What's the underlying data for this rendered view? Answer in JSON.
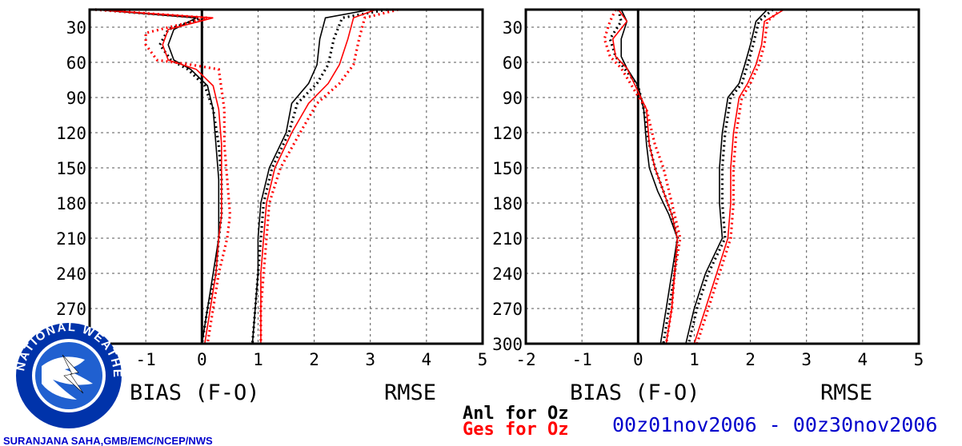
{
  "labels": {
    "bias": "BIAS (F-O)",
    "rmse": "RMSE",
    "legend_anl": "Anl for Oz",
    "legend_ges": "Ges for Oz",
    "date_range": "00z01nov2006 - 00z30nov2006",
    "credit": "SURANJANA SAHA,GMB/EMC/NCEP/NWS",
    "logo_text": "NATIONAL WEATHER SERVICE"
  },
  "colors": {
    "anl": "#000000",
    "ges": "#ff0000",
    "text_blue": "#0000cc"
  },
  "chart_data": [
    {
      "type": "line",
      "panel": "left",
      "xlim": [
        -2,
        5
      ],
      "ylim": [
        300,
        15
      ],
      "x_ticks": [
        "-1",
        "0",
        "1",
        "2",
        "3",
        "4",
        "5"
      ],
      "y_ticks": [
        "30",
        "60",
        "90",
        "120",
        "150",
        "180",
        "210",
        "240",
        "270"
      ],
      "series": [
        {
          "name": "Anl for Oz",
          "style": "solid",
          "color": "#000000",
          "points": [
            [
              -1.9,
              15
            ],
            [
              -0.1,
              22
            ],
            [
              -0.5,
              32
            ],
            [
              -0.6,
              45
            ],
            [
              -0.5,
              58
            ],
            [
              -0.2,
              66
            ],
            [
              0.1,
              80
            ],
            [
              0.2,
              100
            ],
            [
              0.25,
              130
            ],
            [
              0.3,
              160
            ],
            [
              0.3,
              190
            ],
            [
              0.3,
              210
            ],
            [
              0.2,
              240
            ],
            [
              0.1,
              270
            ],
            [
              0.0,
              300
            ],
            [
              3.0,
              15
            ],
            [
              2.2,
              22
            ],
            [
              2.1,
              40
            ],
            [
              2.05,
              62
            ],
            [
              1.9,
              78
            ],
            [
              1.6,
              95
            ],
            [
              1.5,
              120
            ],
            [
              1.2,
              150
            ],
            [
              1.05,
              180
            ],
            [
              1.0,
              210
            ],
            [
              1.0,
              240
            ],
            [
              0.95,
              270
            ],
            [
              0.9,
              300
            ]
          ]
        },
        {
          "name": "Anl for Oz",
          "style": "dotted",
          "color": "#000000",
          "points": [
            [
              -1.9,
              15
            ],
            [
              0.0,
              22
            ],
            [
              -0.6,
              32
            ],
            [
              -0.75,
              45
            ],
            [
              -0.55,
              58
            ],
            [
              -0.25,
              66
            ],
            [
              0.05,
              80
            ],
            [
              0.2,
              100
            ],
            [
              0.3,
              130
            ],
            [
              0.35,
              160
            ],
            [
              0.35,
              190
            ],
            [
              0.3,
              210
            ],
            [
              0.25,
              240
            ],
            [
              0.1,
              270
            ],
            [
              0.0,
              300
            ],
            [
              3.3,
              15
            ],
            [
              2.5,
              22
            ],
            [
              2.35,
              40
            ],
            [
              2.25,
              62
            ],
            [
              2.05,
              78
            ],
            [
              1.7,
              95
            ],
            [
              1.55,
              120
            ],
            [
              1.25,
              150
            ],
            [
              1.1,
              180
            ],
            [
              1.05,
              210
            ],
            [
              1.0,
              240
            ],
            [
              0.95,
              270
            ],
            [
              0.9,
              300
            ]
          ]
        },
        {
          "name": "Ges for Oz",
          "style": "solid",
          "color": "#ff0000",
          "points": [
            [
              -1.9,
              15
            ],
            [
              0.2,
              22
            ],
            [
              -0.6,
              32
            ],
            [
              -0.7,
              45
            ],
            [
              -0.6,
              58
            ],
            [
              -0.1,
              66
            ],
            [
              0.2,
              80
            ],
            [
              0.3,
              100
            ],
            [
              0.35,
              130
            ],
            [
              0.35,
              160
            ],
            [
              0.35,
              190
            ],
            [
              0.3,
              210
            ],
            [
              0.25,
              240
            ],
            [
              0.15,
              270
            ],
            [
              0.05,
              300
            ],
            [
              3.1,
              15
            ],
            [
              2.7,
              22
            ],
            [
              2.6,
              40
            ],
            [
              2.45,
              62
            ],
            [
              2.25,
              78
            ],
            [
              1.9,
              95
            ],
            [
              1.6,
              120
            ],
            [
              1.3,
              150
            ],
            [
              1.15,
              180
            ],
            [
              1.1,
              210
            ],
            [
              1.05,
              240
            ],
            [
              1.05,
              270
            ],
            [
              1.05,
              300
            ]
          ]
        },
        {
          "name": "Ges for Oz",
          "style": "dotted",
          "color": "#ff0000",
          "points": [
            [
              -1.9,
              15
            ],
            [
              0.1,
              22
            ],
            [
              -1.0,
              35
            ],
            [
              -1.0,
              45
            ],
            [
              -0.8,
              58
            ],
            [
              -0.2,
              62
            ],
            [
              0.3,
              66
            ],
            [
              0.4,
              100
            ],
            [
              0.4,
              130
            ],
            [
              0.45,
              160
            ],
            [
              0.5,
              190
            ],
            [
              0.45,
              210
            ],
            [
              0.3,
              240
            ],
            [
              0.2,
              270
            ],
            [
              0.1,
              300
            ],
            [
              3.5,
              15
            ],
            [
              2.9,
              22
            ],
            [
              2.8,
              40
            ],
            [
              2.7,
              62
            ],
            [
              2.45,
              78
            ],
            [
              2.05,
              95
            ],
            [
              1.75,
              120
            ],
            [
              1.4,
              150
            ],
            [
              1.2,
              180
            ],
            [
              1.15,
              210
            ],
            [
              1.1,
              240
            ],
            [
              1.05,
              270
            ],
            [
              1.05,
              300
            ]
          ]
        }
      ]
    },
    {
      "type": "line",
      "panel": "right",
      "xlim": [
        -2,
        5
      ],
      "ylim": [
        300,
        15
      ],
      "x_ticks": [
        "-2",
        "-1",
        "0",
        "1",
        "2",
        "3",
        "4",
        "5"
      ],
      "y_ticks": [
        "30",
        "60",
        "90",
        "120",
        "150",
        "180",
        "210",
        "240",
        "270",
        "300"
      ],
      "series": [
        {
          "name": "Anl for Oz",
          "style": "solid",
          "color": "#000000",
          "points": [
            [
              -0.3,
              15
            ],
            [
              -0.2,
              25
            ],
            [
              -0.3,
              40
            ],
            [
              -0.3,
              55
            ],
            [
              -0.2,
              65
            ],
            [
              0.0,
              80
            ],
            [
              0.1,
              100
            ],
            [
              0.15,
              130
            ],
            [
              0.2,
              150
            ],
            [
              0.35,
              170
            ],
            [
              0.55,
              190
            ],
            [
              0.7,
              210
            ],
            [
              0.6,
              240
            ],
            [
              0.5,
              270
            ],
            [
              0.4,
              300
            ],
            [
              2.3,
              15
            ],
            [
              2.1,
              25
            ],
            [
              2.0,
              45
            ],
            [
              1.9,
              62
            ],
            [
              1.8,
              78
            ],
            [
              1.6,
              90
            ],
            [
              1.5,
              120
            ],
            [
              1.45,
              150
            ],
            [
              1.45,
              180
            ],
            [
              1.5,
              210
            ],
            [
              1.2,
              240
            ],
            [
              1.0,
              270
            ],
            [
              0.85,
              300
            ]
          ]
        },
        {
          "name": "Anl for Oz",
          "style": "dotted",
          "color": "#000000",
          "points": [
            [
              -0.35,
              15
            ],
            [
              -0.3,
              25
            ],
            [
              -0.5,
              40
            ],
            [
              -0.4,
              55
            ],
            [
              -0.25,
              65
            ],
            [
              0.0,
              80
            ],
            [
              0.1,
              100
            ],
            [
              0.2,
              130
            ],
            [
              0.3,
              150
            ],
            [
              0.45,
              170
            ],
            [
              0.6,
              190
            ],
            [
              0.7,
              210
            ],
            [
              0.65,
              240
            ],
            [
              0.55,
              270
            ],
            [
              0.45,
              300
            ],
            [
              2.4,
              15
            ],
            [
              2.15,
              25
            ],
            [
              2.05,
              45
            ],
            [
              1.95,
              62
            ],
            [
              1.85,
              78
            ],
            [
              1.65,
              90
            ],
            [
              1.55,
              120
            ],
            [
              1.5,
              150
            ],
            [
              1.5,
              180
            ],
            [
              1.55,
              210
            ],
            [
              1.25,
              240
            ],
            [
              1.05,
              270
            ],
            [
              0.9,
              300
            ]
          ]
        },
        {
          "name": "Ges for Oz",
          "style": "solid",
          "color": "#ff0000",
          "points": [
            [
              -0.35,
              15
            ],
            [
              -0.2,
              25
            ],
            [
              -0.45,
              40
            ],
            [
              -0.4,
              55
            ],
            [
              -0.2,
              65
            ],
            [
              0.0,
              85
            ],
            [
              0.15,
              100
            ],
            [
              0.2,
              130
            ],
            [
              0.3,
              150
            ],
            [
              0.45,
              170
            ],
            [
              0.6,
              190
            ],
            [
              0.7,
              210
            ],
            [
              0.65,
              240
            ],
            [
              0.6,
              270
            ],
            [
              0.5,
              300
            ],
            [
              2.6,
              15
            ],
            [
              2.25,
              25
            ],
            [
              2.2,
              45
            ],
            [
              2.1,
              62
            ],
            [
              1.95,
              78
            ],
            [
              1.8,
              90
            ],
            [
              1.7,
              120
            ],
            [
              1.65,
              150
            ],
            [
              1.65,
              180
            ],
            [
              1.6,
              210
            ],
            [
              1.4,
              240
            ],
            [
              1.2,
              270
            ],
            [
              1.0,
              300
            ]
          ]
        },
        {
          "name": "Ges for Oz",
          "style": "dotted",
          "color": "#ff0000",
          "points": [
            [
              -0.4,
              15
            ],
            [
              -0.5,
              25
            ],
            [
              -0.6,
              40
            ],
            [
              -0.5,
              55
            ],
            [
              -0.3,
              65
            ],
            [
              -0.05,
              85
            ],
            [
              0.15,
              100
            ],
            [
              0.3,
              130
            ],
            [
              0.45,
              150
            ],
            [
              0.55,
              170
            ],
            [
              0.65,
              190
            ],
            [
              0.75,
              210
            ],
            [
              0.65,
              240
            ],
            [
              0.6,
              270
            ],
            [
              0.5,
              300
            ],
            [
              2.55,
              15
            ],
            [
              2.3,
              25
            ],
            [
              2.25,
              45
            ],
            [
              2.15,
              62
            ],
            [
              2.0,
              78
            ],
            [
              1.85,
              90
            ],
            [
              1.75,
              120
            ],
            [
              1.7,
              150
            ],
            [
              1.7,
              180
            ],
            [
              1.65,
              210
            ],
            [
              1.45,
              240
            ],
            [
              1.25,
              270
            ],
            [
              1.05,
              300
            ]
          ]
        }
      ]
    }
  ]
}
